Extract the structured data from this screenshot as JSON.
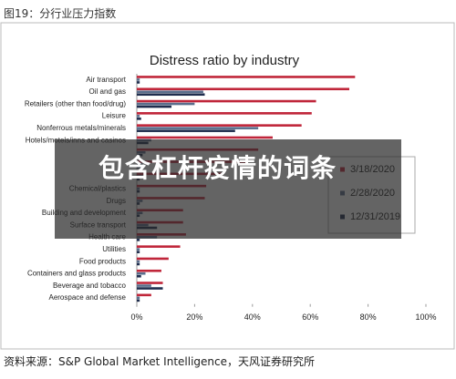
{
  "header": {
    "title": "图19：分行业压力指数"
  },
  "overlay": {
    "text": "包含杠杆疫情的词条"
  },
  "footer": {
    "source": "资料来源：S&P Global Market Intelligence，天风证券研究所"
  },
  "chart_data": {
    "type": "bar",
    "orientation": "horizontal",
    "title": "Distress ratio by industry",
    "categories": [
      "Air transport",
      "Oil and gas",
      "Retailers (other than food/drug)",
      "Leisure",
      "Nonferrous metals/minerals",
      "Hotels/motels/inns and casinos",
      null,
      null,
      null,
      "Chemical/plastics",
      "Drugs",
      "Building and development",
      "Surface transport",
      "Health care",
      "Utilities",
      "Food products",
      "Containers and glass products",
      "Beverage and tobacco",
      "Aerospace and defense"
    ],
    "series": [
      {
        "name": "3/18/2020",
        "color": "#c0263a",
        "values": [
          75.5,
          73.5,
          62,
          60.5,
          57,
          47,
          42,
          38,
          30,
          24,
          23.5,
          16,
          16,
          17,
          15,
          11,
          8.5,
          9,
          5
        ]
      },
      {
        "name": "2/28/2020",
        "color": "#5a6e8c",
        "values": [
          1,
          23,
          20,
          1,
          42,
          5,
          3,
          2,
          2,
          1,
          2,
          2,
          4,
          7,
          1,
          1,
          3,
          5,
          1
        ]
      },
      {
        "name": "12/31/2019",
        "color": "#1f2d4e",
        "values": [
          1,
          23.5,
          12,
          1.5,
          34,
          4,
          2,
          2,
          1,
          1,
          1,
          1,
          7,
          1,
          1,
          1,
          1.5,
          9,
          1
        ]
      }
    ],
    "xlim": [
      0,
      100
    ],
    "xticks": [
      {
        "value": 0,
        "label": "0%"
      },
      {
        "value": 20,
        "label": "20%"
      },
      {
        "value": 40,
        "label": "40%"
      },
      {
        "value": 60,
        "label": "60%"
      },
      {
        "value": 80,
        "label": "80%"
      },
      {
        "value": 100,
        "label": "100%"
      }
    ]
  }
}
